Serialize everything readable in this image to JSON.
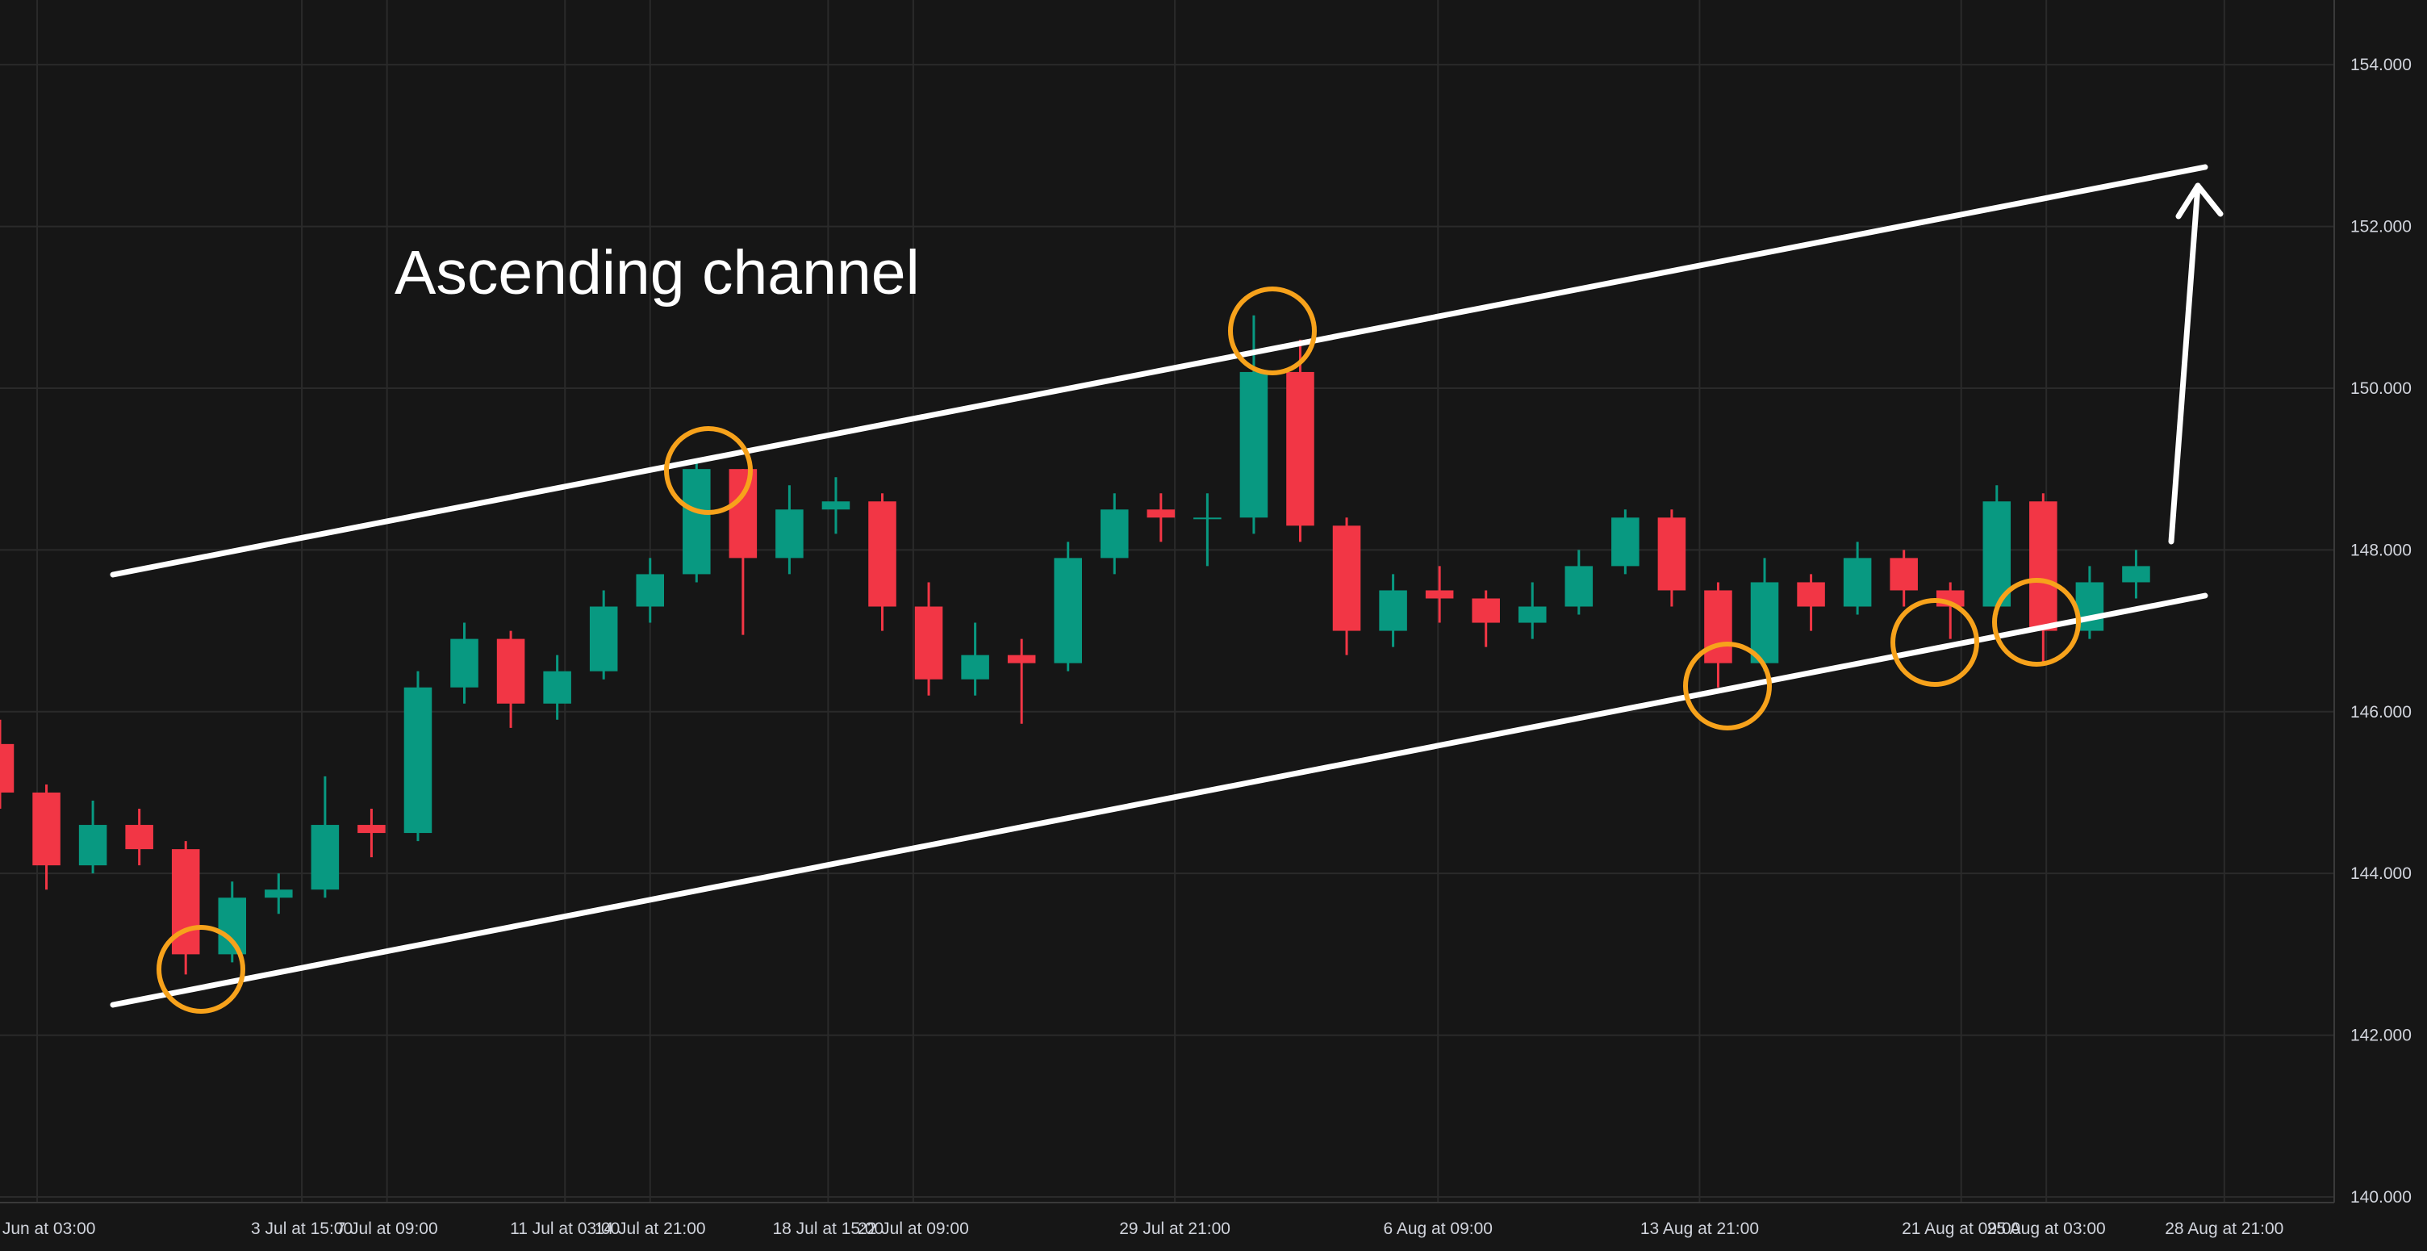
{
  "chart_data": {
    "type": "candlestick",
    "annotation": "Ascending channel",
    "x": [
      0,
      3,
      6,
      9,
      12,
      15,
      18,
      21,
      24,
      27,
      30,
      33,
      36,
      39,
      42,
      45,
      48,
      51,
      54,
      57,
      60,
      63,
      66,
      69,
      72,
      75,
      78,
      81,
      84,
      87,
      90,
      93,
      96,
      99,
      102,
      105,
      108,
      111,
      114,
      117,
      120,
      123,
      126,
      129,
      132,
      135,
      138
    ],
    "open": [
      145.6,
      145.0,
      144.1,
      144.6,
      144.3,
      143.0,
      143.7,
      143.8,
      144.6,
      144.5,
      146.3,
      146.9,
      146.1,
      146.5,
      147.3,
      147.7,
      149.0,
      147.9,
      148.5,
      148.6,
      147.3,
      146.4,
      146.7,
      146.6,
      147.9,
      148.5,
      148.4,
      148.4,
      150.2,
      148.3,
      147.0,
      147.5,
      147.4,
      147.1,
      147.3,
      147.8,
      148.4,
      147.5,
      146.6,
      147.6,
      147.3,
      147.9,
      147.5,
      147.3,
      148.6,
      147.0,
      147.6
    ],
    "high": [
      145.9,
      145.1,
      144.9,
      144.8,
      144.4,
      143.9,
      144.0,
      145.2,
      144.8,
      146.5,
      147.1,
      147.0,
      146.7,
      147.5,
      147.9,
      149.1,
      149.0,
      148.8,
      148.9,
      148.7,
      147.6,
      147.1,
      146.9,
      148.1,
      148.7,
      148.7,
      148.7,
      150.9,
      150.6,
      148.4,
      147.7,
      147.8,
      147.5,
      147.6,
      148.0,
      148.5,
      148.5,
      147.6,
      147.9,
      147.7,
      148.1,
      148.0,
      147.6,
      148.8,
      148.7,
      147.8,
      148.0
    ],
    "low": [
      144.8,
      143.8,
      144.0,
      144.1,
      142.75,
      142.9,
      143.5,
      143.7,
      144.2,
      144.4,
      146.1,
      145.8,
      145.9,
      146.4,
      147.1,
      147.6,
      146.95,
      147.7,
      148.2,
      147.0,
      146.2,
      146.2,
      145.85,
      146.5,
      147.7,
      148.1,
      147.8,
      148.2,
      148.1,
      146.7,
      146.8,
      147.1,
      146.8,
      146.9,
      147.2,
      147.7,
      147.3,
      146.3,
      146.5,
      147.0,
      147.2,
      147.3,
      146.9,
      147.2,
      146.6,
      146.9,
      147.4
    ],
    "close": [
      145.0,
      144.1,
      144.6,
      144.3,
      143.0,
      143.7,
      143.8,
      144.6,
      144.5,
      146.3,
      146.9,
      146.1,
      146.5,
      147.3,
      147.7,
      149.0,
      147.9,
      148.5,
      148.6,
      147.3,
      146.4,
      146.7,
      146.6,
      147.9,
      148.5,
      148.4,
      148.4,
      150.2,
      148.3,
      147.0,
      147.5,
      147.4,
      147.1,
      147.3,
      147.8,
      148.4,
      147.5,
      146.6,
      147.6,
      147.3,
      147.9,
      147.5,
      147.3,
      148.6,
      147.0,
      147.6,
      147.8
    ],
    "up_color": "#089981",
    "down_color": "#f23645",
    "xlim": [
      0,
      150.8
    ],
    "xticks": [
      {
        "value": 2.4,
        "label": "26 Jun at 03:00"
      },
      {
        "value": 19.5,
        "label": "3 Jul at 15:00"
      },
      {
        "value": 25,
        "label": "7 Jul at 09:00"
      },
      {
        "value": 36.5,
        "label": "11 Jul at 03:00"
      },
      {
        "value": 42,
        "label": "14 Jul at 21:00"
      },
      {
        "value": 53.5,
        "label": "18 Jul at 15:00"
      },
      {
        "value": 59,
        "label": "22 Jul at 09:00"
      },
      {
        "value": 75.9,
        "label": "29 Jul at 21:00"
      },
      {
        "value": 92.9,
        "label": "6 Aug at 09:00"
      },
      {
        "value": 109.8,
        "label": "13 Aug at 21:00"
      },
      {
        "value": 126.7,
        "label": "21 Aug at 09:00"
      },
      {
        "value": 132.2,
        "label": "25 Aug at 03:00"
      },
      {
        "value": 143.7,
        "label": "28 Aug at 21:00"
      }
    ],
    "ylim": [
      139.93,
      154.8
    ],
    "yticks": [
      {
        "value": 140,
        "label": "140.000"
      },
      {
        "value": 142,
        "label": "142.000"
      },
      {
        "value": 144,
        "label": "144.000"
      },
      {
        "value": 146,
        "label": "146.000"
      },
      {
        "value": 148,
        "label": "148.000"
      },
      {
        "value": 150,
        "label": "150.000"
      },
      {
        "value": 152,
        "label": "152.000"
      },
      {
        "value": 154,
        "label": "154.000"
      }
    ],
    "grid": true
  }
}
